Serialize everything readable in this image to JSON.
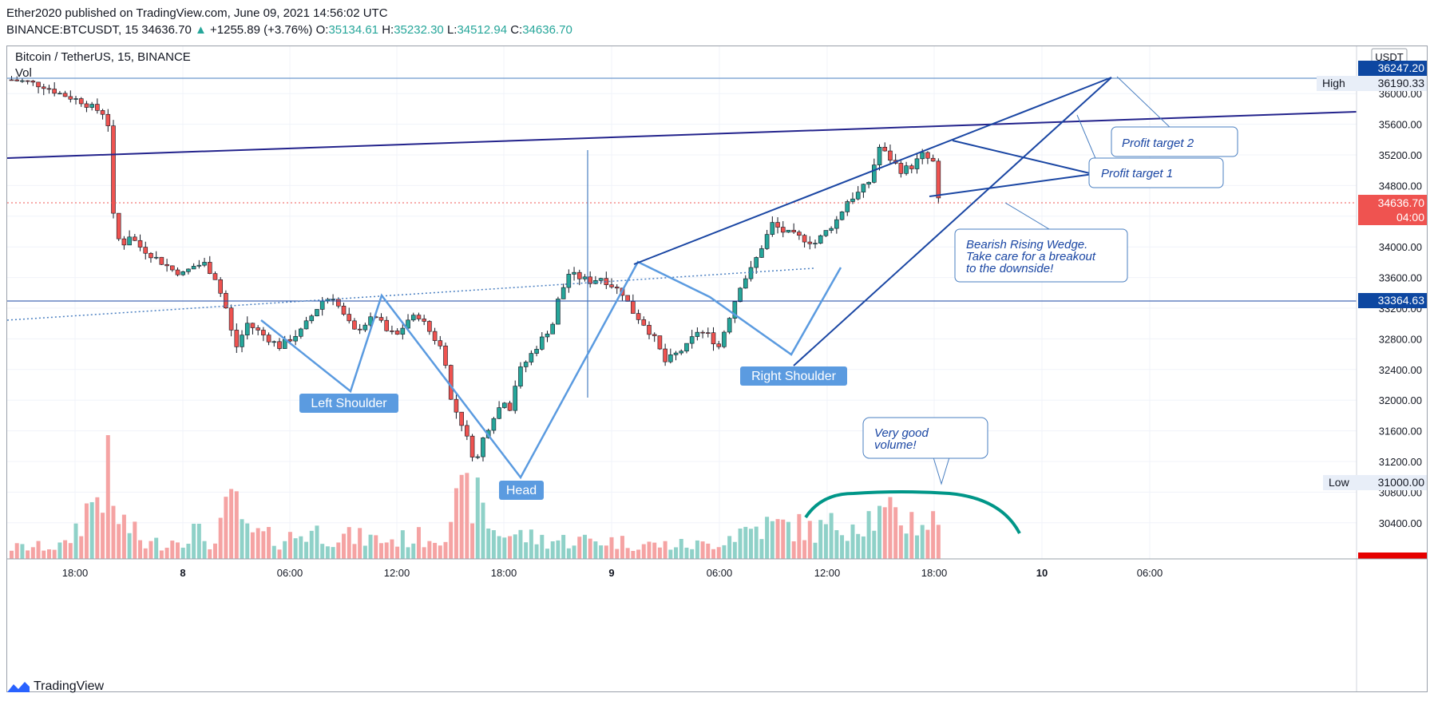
{
  "header": {
    "publisher_line": "Ether2020 published on TradingView.com, June 09, 2021 14:56:02 UTC",
    "symbol": "BINANCE:BTCUSDT, 15",
    "last": "34636.70",
    "change_arrow": "▲",
    "change": "+1255.89 (+3.76%)",
    "o_label": "O:",
    "o_value": "35134.61",
    "h_label": "H:",
    "h_value": "35232.30",
    "l_label": "L:",
    "l_value": "34512.94",
    "c_label": "C:",
    "c_value": "34636.70"
  },
  "legend": {
    "title": "Bitcoin / TetherUS, 15, BINANCE",
    "vol_label": "Vol"
  },
  "footer": {
    "brand": "TradingView",
    "logo_icon": "tradingview-logo-icon"
  },
  "colors": {
    "up": "#26a69a",
    "down": "#ef5350",
    "vol_up": "#8fd1c8",
    "vol_down": "#f5a3a3",
    "drawing": "#1a46a3",
    "pattern": "#5b9be0",
    "accent": "#0d47a1"
  },
  "chart_data": {
    "type": "candlestick",
    "title": "Bitcoin / TetherUS, 15, BINANCE",
    "currency": "USDT",
    "y_axis_ticks": [
      "36000.00",
      "35600.00",
      "35200.00",
      "34800.00",
      "34400.00",
      "34000.00",
      "33600.00",
      "33200.00",
      "32800.00",
      "32400.00",
      "32000.00",
      "31600.00",
      "31200.00",
      "30800.00",
      "30400.00"
    ],
    "x_axis_ticks": [
      "18:00",
      "8",
      "06:00",
      "12:00",
      "18:00",
      "9",
      "06:00",
      "12:00",
      "18:00",
      "10",
      "06:00"
    ],
    "ylim": [
      30080,
      36350
    ],
    "price_labels": [
      {
        "name": "current",
        "value": "34636.70",
        "sub": "04:00"
      },
      {
        "name": "high-line",
        "value": "36247.20"
      },
      {
        "name": "high",
        "label": "High",
        "value": "36190.33"
      },
      {
        "name": "neckline-level",
        "value": "33364.63"
      },
      {
        "name": "low",
        "label": "Low",
        "value": "31000.00"
      },
      {
        "name": "bottom",
        "value": "30080.54"
      }
    ],
    "pattern_labels": [
      "Left Shoulder",
      "Head",
      "Right Shoulder"
    ],
    "annotations": [
      {
        "name": "profit-target-2",
        "text": "Profit target 2"
      },
      {
        "name": "profit-target-1",
        "text": "Profit target 1"
      },
      {
        "name": "wedge-note",
        "lines": [
          "Bearish Rising Wedge.",
          "Take care for a breakout",
          "to the downside!"
        ]
      },
      {
        "name": "volume-note",
        "lines": [
          "Very good",
          "volume!"
        ]
      }
    ],
    "close_path": [
      [
        0,
        36180
      ],
      [
        3,
        36150
      ],
      [
        6,
        36100
      ],
      [
        9,
        36000
      ],
      [
        11,
        35950
      ],
      [
        13,
        35900
      ],
      [
        15,
        35820
      ],
      [
        17,
        35750
      ],
      [
        18,
        35600
      ],
      [
        19,
        34400
      ],
      [
        20,
        34100
      ],
      [
        21,
        34050
      ],
      [
        22,
        34150
      ],
      [
        24,
        34000
      ],
      [
        26,
        33900
      ],
      [
        28,
        33800
      ],
      [
        30,
        33700
      ],
      [
        32,
        33650
      ],
      [
        34,
        33750
      ],
      [
        36,
        33780
      ],
      [
        38,
        33600
      ],
      [
        40,
        33200
      ],
      [
        41,
        32900
      ],
      [
        42,
        32700
      ],
      [
        44,
        33000
      ],
      [
        46,
        32900
      ],
      [
        48,
        32800
      ],
      [
        50,
        32700
      ],
      [
        52,
        32800
      ],
      [
        54,
        32900
      ],
      [
        56,
        33100
      ],
      [
        58,
        33300
      ],
      [
        60,
        33350
      ],
      [
        62,
        33100
      ],
      [
        64,
        32900
      ],
      [
        66,
        33000
      ],
      [
        68,
        33100
      ],
      [
        70,
        32900
      ],
      [
        72,
        32850
      ],
      [
        74,
        33050
      ],
      [
        76,
        33100
      ],
      [
        78,
        32900
      ],
      [
        80,
        32700
      ],
      [
        81,
        32500
      ],
      [
        82,
        32000
      ],
      [
        84,
        31700
      ],
      [
        85,
        31500
      ],
      [
        86,
        31300
      ],
      [
        87,
        31250
      ],
      [
        88,
        31500
      ],
      [
        90,
        31800
      ],
      [
        92,
        32000
      ],
      [
        93,
        31900
      ],
      [
        94,
        32200
      ],
      [
        95,
        32400
      ],
      [
        97,
        32600
      ],
      [
        99,
        32800
      ],
      [
        101,
        33000
      ],
      [
        102,
        33300
      ],
      [
        104,
        33650
      ],
      [
        106,
        33600
      ],
      [
        108,
        33550
      ],
      [
        110,
        33600
      ],
      [
        112,
        33500
      ],
      [
        114,
        33400
      ],
      [
        116,
        33150
      ],
      [
        118,
        33000
      ],
      [
        120,
        32800
      ],
      [
        122,
        32500
      ],
      [
        124,
        32600
      ],
      [
        126,
        32700
      ],
      [
        128,
        32900
      ],
      [
        130,
        32850
      ],
      [
        132,
        32700
      ],
      [
        134,
        33100
      ],
      [
        136,
        33500
      ],
      [
        138,
        33700
      ],
      [
        140,
        34000
      ],
      [
        142,
        34300
      ],
      [
        144,
        34200
      ],
      [
        146,
        34150
      ],
      [
        148,
        34100
      ],
      [
        150,
        34050
      ],
      [
        152,
        34200
      ],
      [
        154,
        34350
      ],
      [
        156,
        34600
      ],
      [
        158,
        34700
      ],
      [
        160,
        34850
      ],
      [
        162,
        35300
      ],
      [
        164,
        35150
      ],
      [
        166,
        35000
      ],
      [
        168,
        35050
      ],
      [
        170,
        35200
      ],
      [
        172,
        35100
      ],
      [
        173,
        34600
      ]
    ],
    "volume_profile": [
      [
        0,
        0.12
      ],
      [
        10,
        0.14
      ],
      [
        18,
        0.9
      ],
      [
        19,
        0.5
      ],
      [
        25,
        0.15
      ],
      [
        30,
        0.2
      ],
      [
        34,
        0.3
      ],
      [
        38,
        0.15
      ],
      [
        42,
        0.8
      ],
      [
        43,
        0.3
      ],
      [
        50,
        0.2
      ],
      [
        56,
        0.3
      ],
      [
        60,
        0.25
      ],
      [
        70,
        0.2
      ],
      [
        80,
        0.25
      ],
      [
        82,
        0.5
      ],
      [
        86,
        0.7
      ],
      [
        90,
        0.3
      ],
      [
        100,
        0.2
      ],
      [
        110,
        0.2
      ],
      [
        120,
        0.15
      ],
      [
        130,
        0.15
      ],
      [
        136,
        0.3
      ],
      [
        140,
        0.35
      ],
      [
        146,
        0.35
      ],
      [
        150,
        0.3
      ],
      [
        156,
        0.4
      ],
      [
        160,
        0.45
      ],
      [
        164,
        0.45
      ],
      [
        170,
        0.4
      ],
      [
        173,
        0.4
      ]
    ]
  }
}
